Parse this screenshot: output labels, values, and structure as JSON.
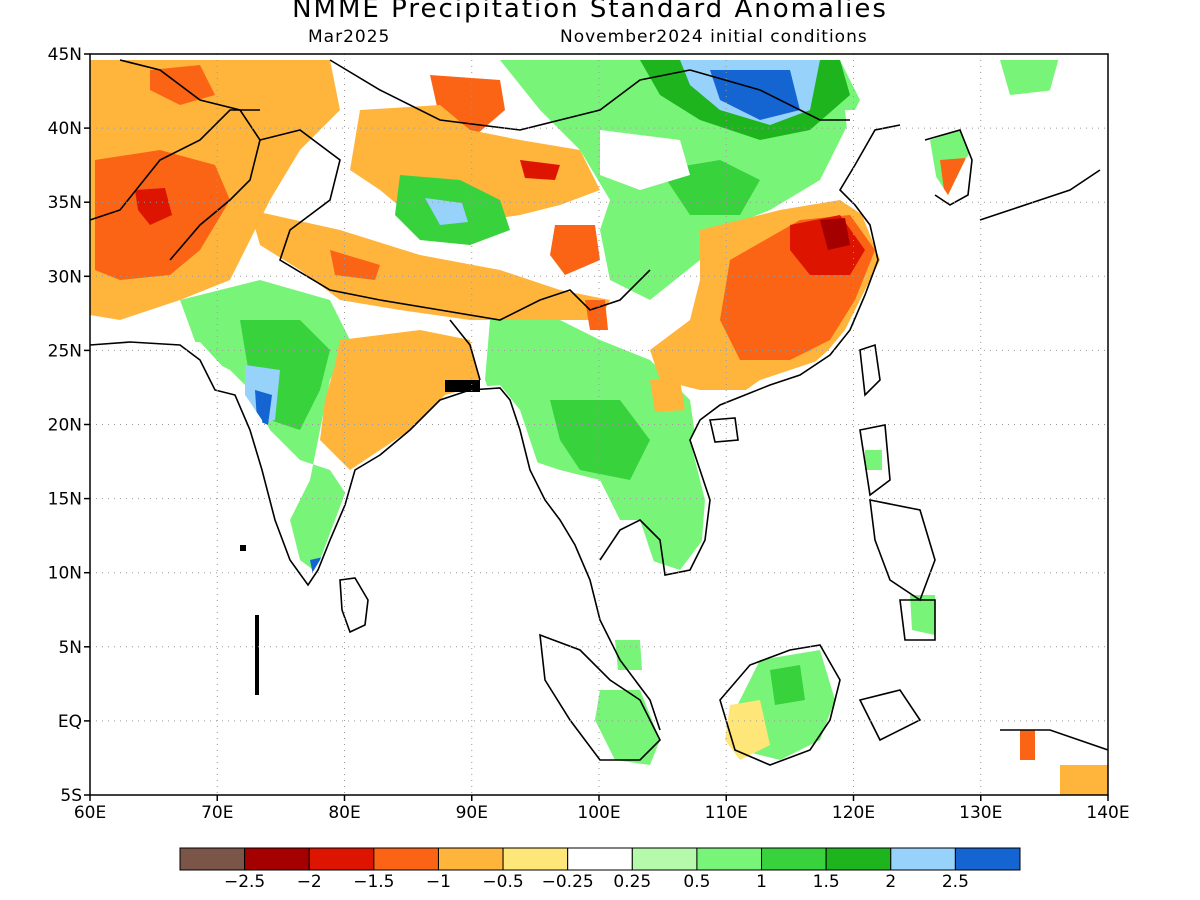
{
  "title": "NMME Precipitation Standard Anomalies",
  "target_month": "Mar2025",
  "initial_conditions": "November2024 initial conditions",
  "map": {
    "lon_range": [
      60,
      140
    ],
    "lat_range": [
      -5,
      45
    ],
    "lon_ticks": [
      {
        "v": 60,
        "label": "60E"
      },
      {
        "v": 70,
        "label": "70E"
      },
      {
        "v": 80,
        "label": "80E"
      },
      {
        "v": 90,
        "label": "90E"
      },
      {
        "v": 100,
        "label": "100E"
      },
      {
        "v": 110,
        "label": "110E"
      },
      {
        "v": 120,
        "label": "120E"
      },
      {
        "v": 130,
        "label": "130E"
      },
      {
        "v": 140,
        "label": "140E"
      }
    ],
    "lat_ticks": [
      {
        "v": 45,
        "label": "45N"
      },
      {
        "v": 40,
        "label": "40N"
      },
      {
        "v": 35,
        "label": "35N"
      },
      {
        "v": 30,
        "label": "30N"
      },
      {
        "v": 25,
        "label": "25N"
      },
      {
        "v": 20,
        "label": "20N"
      },
      {
        "v": 15,
        "label": "15N"
      },
      {
        "v": 10,
        "label": "10N"
      },
      {
        "v": 5,
        "label": "5N"
      },
      {
        "v": 0,
        "label": "EQ"
      },
      {
        "v": -5,
        "label": "5S"
      }
    ],
    "gridlines": "dotted"
  },
  "colorbar": {
    "colors": [
      "#7a5548",
      "#a50000",
      "#dc1400",
      "#fa6414",
      "#ffb43c",
      "#ffe678",
      "#ffffff",
      "#b4faaa",
      "#78f578",
      "#37d23c",
      "#1eb41e",
      "#96d2fa",
      "#1464d2"
    ],
    "labels": [
      "−2.5",
      "−2",
      "−1.5",
      "−1",
      "−0.5",
      "−0.25",
      "0.25",
      "0.5",
      "1",
      "1.5",
      "2",
      "2.5"
    ]
  }
}
